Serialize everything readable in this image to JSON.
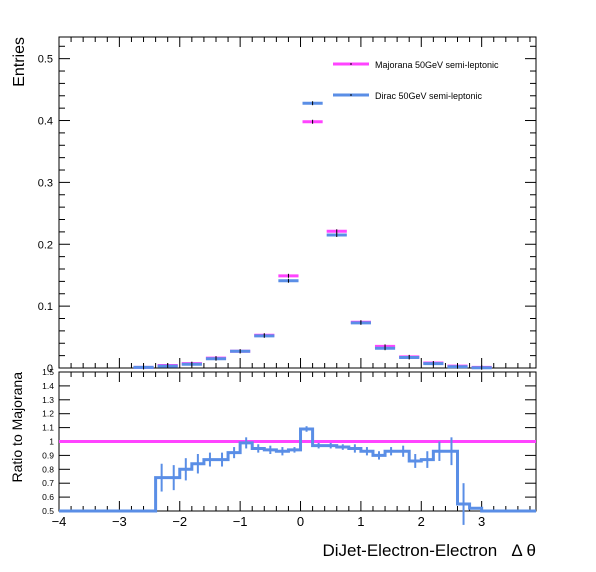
{
  "chart_data": [
    {
      "type": "line",
      "subtype": "step-histogram-with-markers",
      "ylabel": "Entries",
      "ylim": [
        0,
        0.535
      ],
      "xlim": [
        -4,
        3.9
      ],
      "yticks": [
        0,
        0.1,
        0.2,
        0.3,
        0.4,
        0.5
      ],
      "ytick_labels": [
        "0",
        "0.1",
        "0.2",
        "0.3",
        "0.4",
        "0.5"
      ],
      "legend_position": "top-right",
      "bin_edges": [
        -4.0,
        -3.6,
        -3.2,
        -2.8,
        -2.4,
        -2.0,
        -1.6,
        -1.2,
        -0.8,
        -0.4,
        0.0,
        0.4,
        0.8,
        1.2,
        1.6,
        2.0,
        2.4,
        2.8,
        3.2,
        3.6
      ],
      "series": [
        {
          "name": "Majorana 50GeV semi-leptonic",
          "color": "#ff44ff",
          "values": [
            0,
            0,
            0,
            0.001,
            0.004,
            0.007,
            0.016,
            0.027,
            0.053,
            0.149,
            0.398,
            0.221,
            0.074,
            0.035,
            0.018,
            0.008,
            0.003,
            0.001,
            0
          ]
        },
        {
          "name": "Dirac 50GeV semi-leptonic",
          "color": "#5a8ee6",
          "values": [
            0,
            0,
            0,
            0.001,
            0.003,
            0.006,
            0.015,
            0.027,
            0.052,
            0.141,
            0.428,
            0.215,
            0.073,
            0.032,
            0.017,
            0.007,
            0.002,
            0.0005,
            0
          ]
        }
      ]
    },
    {
      "type": "line",
      "subtype": "ratio-step-histogram",
      "xlabel": "DiJet-Electron-Electron   Δ θ",
      "ylabel": "Ratio to Majorana",
      "xlim": [
        -4,
        3.9
      ],
      "ylim": [
        0.5,
        1.5
      ],
      "xticks": [
        -4,
        -3,
        -2,
        -1,
        0,
        1,
        2,
        3
      ],
      "xtick_labels": [
        "−4",
        "−3",
        "−2",
        "−1",
        "0",
        "1",
        "2",
        "3"
      ],
      "yticks": [
        0.5,
        0.6,
        0.7,
        0.8,
        0.9,
        1.0,
        1.1,
        1.2,
        1.3,
        1.4,
        1.5
      ],
      "ytick_labels": [
        "0.5",
        "0.6",
        "0.7",
        "0.8",
        "0.9",
        "1",
        "1.1",
        "1.2",
        "1.3",
        "1.4",
        "1.5"
      ],
      "bin_edges": [
        -4.0,
        -3.8,
        -3.6,
        -3.4,
        -3.2,
        -3.0,
        -2.8,
        -2.6,
        -2.4,
        -2.2,
        -2.0,
        -1.8,
        -1.6,
        -1.4,
        -1.2,
        -1.0,
        -0.8,
        -0.6,
        -0.4,
        -0.2,
        0.0,
        0.2,
        0.4,
        0.6,
        0.8,
        1.0,
        1.2,
        1.4,
        1.6,
        1.8,
        2.0,
        2.2,
        2.4,
        2.6,
        2.8,
        3.0,
        3.2,
        3.4,
        3.6,
        3.9
      ],
      "series": [
        {
          "name": "Majorana 50GeV semi-leptonic",
          "color": "#ff44ff",
          "values": [
            1,
            1,
            1,
            1,
            1,
            1,
            1,
            1,
            1,
            1,
            1,
            1,
            1,
            1,
            1,
            1,
            1,
            1,
            1,
            1,
            1,
            1,
            1,
            1,
            1,
            1,
            1,
            1,
            1,
            1,
            1,
            1,
            1,
            1,
            1,
            1,
            1,
            1,
            1
          ],
          "errors": []
        },
        {
          "name": "Dirac 50GeV semi-leptonic",
          "color": "#5a8ee6",
          "values": [
            0.5,
            0.5,
            0.5,
            0.5,
            0.5,
            0.5,
            0.5,
            0.5,
            0.74,
            0.74,
            0.8,
            0.84,
            0.87,
            0.87,
            0.92,
            0.99,
            0.95,
            0.94,
            0.93,
            0.94,
            1.09,
            0.97,
            0.97,
            0.96,
            0.95,
            0.93,
            0.9,
            0.93,
            0.93,
            0.86,
            0.87,
            0.93,
            0.93,
            0.55,
            0.52,
            0.5,
            0.5,
            0.5,
            0.5
          ],
          "errors": [
            0,
            0,
            0,
            0,
            0,
            0,
            0,
            0,
            0.1,
            0.09,
            0.08,
            0.07,
            0.05,
            0.05,
            0.04,
            0.04,
            0.03,
            0.03,
            0.03,
            0.02,
            0.02,
            0.02,
            0.02,
            0.02,
            0.03,
            0.03,
            0.03,
            0.03,
            0.04,
            0.05,
            0.06,
            0.07,
            0.1,
            0.15,
            0,
            0,
            0,
            0,
            0
          ]
        }
      ]
    }
  ]
}
